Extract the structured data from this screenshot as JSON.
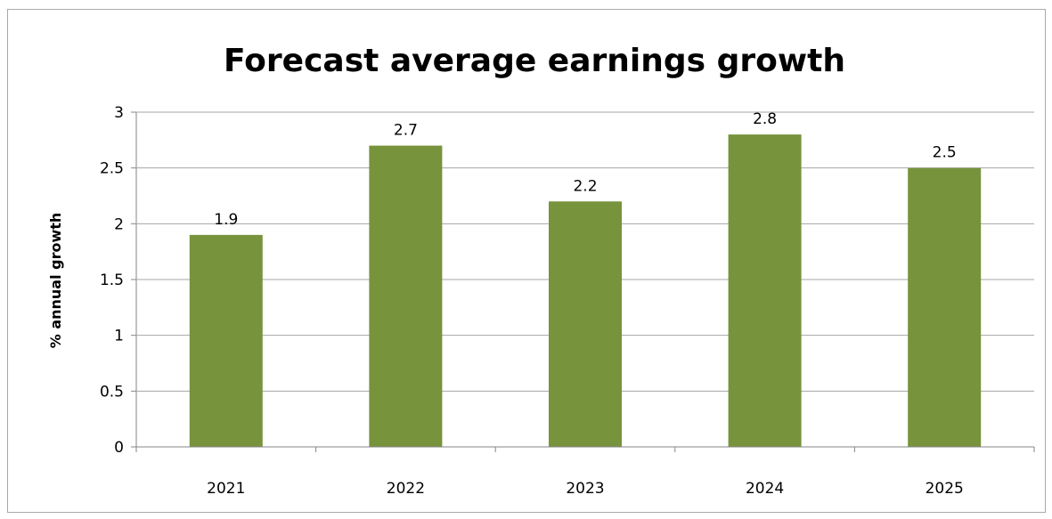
{
  "colors": {
    "bar": "#77933c",
    "gridline": "#a6a6a6",
    "axis": "#868686",
    "frame": "#a9a9a9"
  },
  "chart_data": {
    "type": "bar",
    "title": "Forecast average earnings growth",
    "xlabel": "",
    "ylabel": "% annual growth",
    "categories": [
      "2021",
      "2022",
      "2023",
      "2024",
      "2025"
    ],
    "values": [
      1.9,
      2.7,
      2.2,
      2.8,
      2.5
    ],
    "value_labels": [
      "1.9",
      "2.7",
      "2.2",
      "2.8",
      "2.5"
    ],
    "ylim": [
      0,
      3
    ],
    "yticks": [
      0,
      0.5,
      1,
      1.5,
      2,
      2.5,
      3
    ],
    "ytick_labels": [
      "0",
      "0.5",
      "1",
      "1.5",
      "2",
      "2.5",
      "3"
    ],
    "grid": true,
    "legend": "none"
  }
}
